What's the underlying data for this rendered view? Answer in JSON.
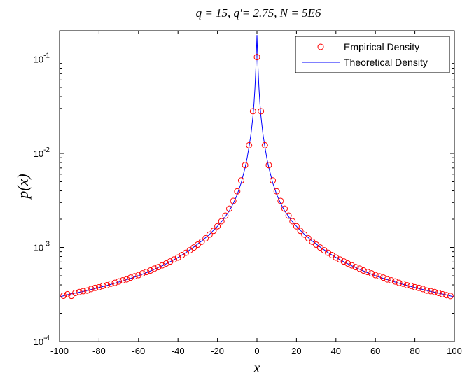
{
  "chart_data": {
    "type": "scatter",
    "title": "q = 15, q′= 2.75, N = 5E6",
    "xlabel": "x",
    "ylabel": "p(x)",
    "xlim": [
      -100,
      100
    ],
    "ylim": [
      0.0001,
      0.2
    ],
    "yscale": "log",
    "grid": false,
    "legend_position": "top-right",
    "x_ticks": [
      "-100",
      "-80",
      "-60",
      "-40",
      "-20",
      "0",
      "20",
      "40",
      "60",
      "80",
      "100"
    ],
    "y_ticks": [
      {
        "base": "10",
        "exp": "-4"
      },
      {
        "base": "10",
        "exp": "-3"
      },
      {
        "base": "10",
        "exp": "-2"
      },
      {
        "base": "10",
        "exp": "-1"
      }
    ],
    "series": [
      {
        "name": "Empirical Density",
        "style": "markers",
        "color": "#ff0000",
        "x": [
          -98,
          -96,
          -94,
          -92,
          -90,
          -88,
          -86,
          -84,
          -82,
          -80,
          -78,
          -76,
          -74,
          -72,
          -70,
          -68,
          -66,
          -64,
          -62,
          -60,
          -58,
          -56,
          -54,
          -52,
          -50,
          -48,
          -46,
          -44,
          -42,
          -40,
          -38,
          -36,
          -34,
          -32,
          -30,
          -28,
          -26,
          -24,
          -22,
          -20,
          -18,
          -16,
          -14,
          -12,
          -10,
          -8,
          -6,
          -4,
          -2,
          0,
          2,
          4,
          6,
          8,
          10,
          12,
          14,
          16,
          18,
          20,
          22,
          24,
          26,
          28,
          30,
          32,
          34,
          36,
          38,
          40,
          42,
          44,
          46,
          48,
          50,
          52,
          54,
          56,
          58,
          60,
          62,
          64,
          66,
          68,
          70,
          72,
          74,
          76,
          78,
          80,
          82,
          84,
          86,
          88,
          90,
          92,
          94,
          96,
          98
        ],
        "y": [
          0.000307,
          0.000318,
          0.000306,
          0.000329,
          0.000336,
          0.000343,
          0.000348,
          0.000362,
          0.000372,
          0.000378,
          0.000391,
          0.000397,
          0.000412,
          0.00042,
          0.000435,
          0.000447,
          0.000458,
          0.000478,
          0.000494,
          0.000508,
          0.00053,
          0.000548,
          0.000568,
          0.000595,
          0.000618,
          0.000645,
          0.000675,
          0.000708,
          0.000745,
          0.00078,
          0.000828,
          0.000878,
          0.000932,
          0.000998,
          0.00107,
          0.00115,
          0.00125,
          0.00137,
          0.0015,
          0.00168,
          0.0019,
          0.00218,
          0.00258,
          0.00312,
          0.00395,
          0.00515,
          0.0075,
          0.0122,
          0.028,
          0.105,
          0.028,
          0.0122,
          0.0075,
          0.00515,
          0.00395,
          0.00312,
          0.00258,
          0.00218,
          0.0019,
          0.00168,
          0.0015,
          0.00137,
          0.00125,
          0.00115,
          0.00107,
          0.000998,
          0.000932,
          0.000878,
          0.000828,
          0.00078,
          0.000745,
          0.000708,
          0.000675,
          0.000645,
          0.000618,
          0.000595,
          0.000568,
          0.000548,
          0.00053,
          0.000508,
          0.000494,
          0.000478,
          0.000458,
          0.000447,
          0.000435,
          0.00042,
          0.000412,
          0.000397,
          0.000391,
          0.000378,
          0.000372,
          0.000362,
          0.000348,
          0.000343,
          0.000336,
          0.000329,
          0.000318,
          0.000311,
          0.000305
        ]
      },
      {
        "name": "Theoretical Density",
        "style": "line",
        "color": "#0000ff",
        "x": [
          -100,
          -96,
          -92,
          -88,
          -84,
          -80,
          -76,
          -72,
          -68,
          -64,
          -60,
          -56,
          -52,
          -48,
          -44,
          -40,
          -36,
          -32,
          -28,
          -24,
          -20,
          -17,
          -14,
          -12,
          -10,
          -8,
          -6,
          -5,
          -4,
          -3,
          -2,
          -1.5,
          -1,
          -0.5,
          0,
          0.5,
          1,
          1.5,
          2,
          3,
          4,
          5,
          6,
          8,
          10,
          12,
          14,
          17,
          20,
          24,
          28,
          32,
          36,
          40,
          44,
          48,
          52,
          56,
          60,
          64,
          68,
          72,
          76,
          80,
          84,
          88,
          92,
          96,
          100
        ],
        "y": [
          0.000298,
          0.000315,
          0.000327,
          0.000341,
          0.000357,
          0.000375,
          0.000394,
          0.000417,
          0.000441,
          0.000469,
          0.000501,
          0.000539,
          0.000585,
          0.000638,
          0.000703,
          0.000783,
          0.000882,
          0.00101,
          0.00117,
          0.00138,
          0.00168,
          0.00199,
          0.00245,
          0.00293,
          0.00365,
          0.00485,
          0.00705,
          0.0089,
          0.0118,
          0.0162,
          0.025,
          0.034,
          0.05,
          0.085,
          0.18,
          0.085,
          0.05,
          0.034,
          0.025,
          0.0162,
          0.0118,
          0.0089,
          0.00705,
          0.00485,
          0.00365,
          0.00293,
          0.00245,
          0.00199,
          0.00168,
          0.00138,
          0.00117,
          0.00101,
          0.000882,
          0.000783,
          0.000703,
          0.000638,
          0.000585,
          0.000539,
          0.000501,
          0.000469,
          0.000441,
          0.000417,
          0.000394,
          0.000375,
          0.000357,
          0.000341,
          0.000327,
          0.000313,
          0.000298
        ]
      }
    ]
  }
}
